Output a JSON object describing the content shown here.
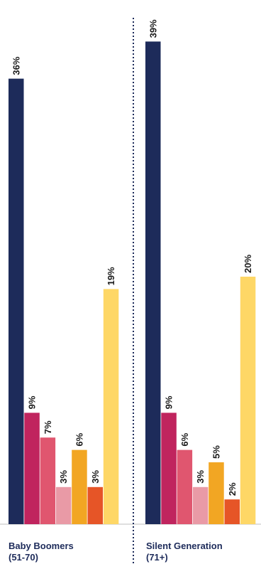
{
  "chart_data": {
    "type": "bar",
    "groups": [
      {
        "label_line1": "Baby Boomers",
        "label_line2": "(51-70)",
        "values": [
          36,
          9,
          7,
          3,
          6,
          3,
          19
        ]
      },
      {
        "label_line1": "Silent Generation",
        "label_line2": "(71+)",
        "values": [
          39,
          9,
          6,
          3,
          5,
          2,
          20
        ]
      }
    ],
    "value_suffix": "%",
    "series_colors": [
      "#1d2b5a",
      "#c0245e",
      "#e0566f",
      "#e99aa6",
      "#f2a623",
      "#e65527",
      "#fed766"
    ],
    "ylim": [
      0,
      40
    ]
  }
}
